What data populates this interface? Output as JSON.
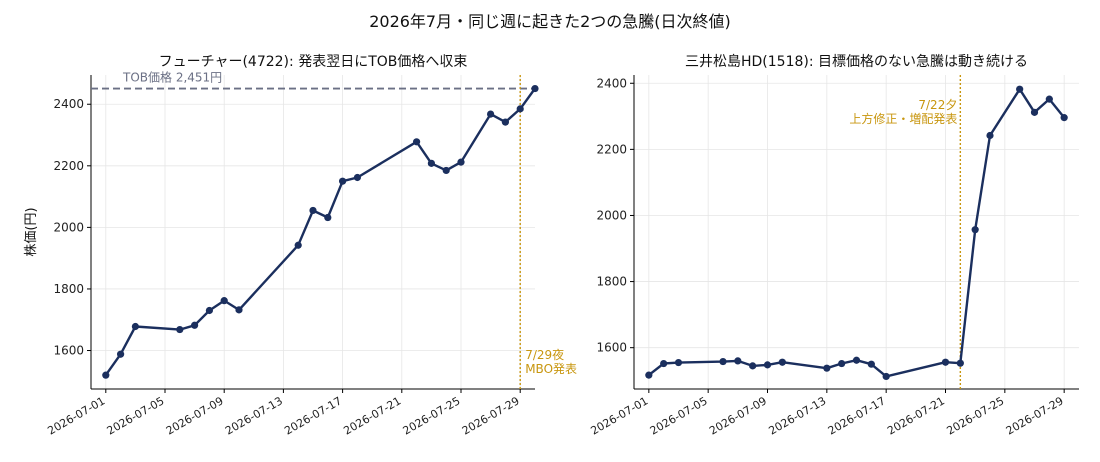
{
  "figure_title": "2026年7月・同じ週に起きた2つの急騰(日次終値)",
  "colors": {
    "line": "#1b2f5e",
    "ref": "#6b7085",
    "event": "#c8960f",
    "grid": "#e6e6e6",
    "axis": "#000000"
  },
  "chart_data": [
    {
      "type": "line",
      "title": "フューチャー(4722): 発表翌日にTOB価格へ収束",
      "ylabel": "株価(円)",
      "xlabel": "",
      "ylim": [
        1475,
        2495
      ],
      "xlim": [
        "2026-06-30",
        "2026-07-30"
      ],
      "yticks": [
        1600,
        1800,
        2000,
        2200,
        2400
      ],
      "xticks": [
        "2026-07-01",
        "2026-07-05",
        "2026-07-09",
        "2026-07-13",
        "2026-07-17",
        "2026-07-21",
        "2026-07-25",
        "2026-07-29"
      ],
      "grid": true,
      "series": [
        {
          "x": [
            "2026-07-01",
            "2026-07-02",
            "2026-07-03",
            "2026-07-06",
            "2026-07-07",
            "2026-07-08",
            "2026-07-09",
            "2026-07-10",
            "2026-07-14",
            "2026-07-15",
            "2026-07-16",
            "2026-07-17",
            "2026-07-18",
            "2026-07-22",
            "2026-07-23",
            "2026-07-24",
            "2026-07-25",
            "2026-07-27",
            "2026-07-28",
            "2026-07-29",
            "2026-07-30"
          ],
          "y": [
            1520,
            1588,
            1678,
            1668,
            1682,
            1730,
            1762,
            1732,
            1942,
            2055,
            2032,
            2150,
            2162,
            2278,
            2208,
            2185,
            2212,
            2368,
            2342,
            2385,
            2451
          ]
        }
      ],
      "hline": {
        "y": 2451,
        "label": "TOB価格 2,451円"
      },
      "vline": {
        "x": "2026-07-29",
        "label_lines": [
          "7/29夜",
          "MBO発表"
        ]
      }
    },
    {
      "type": "line",
      "title": "三井松島HD(1518): 目標価格のない急騰は動き続ける",
      "ylabel": "",
      "xlabel": "",
      "ylim": [
        1475,
        2425
      ],
      "xlim": [
        "2026-06-30",
        "2026-07-30"
      ],
      "yticks": [
        1600,
        1800,
        2000,
        2200,
        2400
      ],
      "xticks": [
        "2026-07-01",
        "2026-07-05",
        "2026-07-09",
        "2026-07-13",
        "2026-07-17",
        "2026-07-21",
        "2026-07-25",
        "2026-07-29"
      ],
      "grid": true,
      "series": [
        {
          "x": [
            "2026-07-01",
            "2026-07-02",
            "2026-07-03",
            "2026-07-06",
            "2026-07-07",
            "2026-07-08",
            "2026-07-09",
            "2026-07-10",
            "2026-07-13",
            "2026-07-14",
            "2026-07-15",
            "2026-07-16",
            "2026-07-17",
            "2026-07-21",
            "2026-07-22",
            "2026-07-23",
            "2026-07-24",
            "2026-07-26",
            "2026-07-27",
            "2026-07-28",
            "2026-07-29"
          ],
          "y": [
            1517,
            1552,
            1555,
            1558,
            1560,
            1545,
            1548,
            1556,
            1538,
            1552,
            1562,
            1550,
            1513,
            1556,
            1553,
            1957,
            2242,
            2382,
            2312,
            2352,
            2296
          ]
        }
      ],
      "vline": {
        "x": "2026-07-22",
        "label_lines": [
          "7/22夕",
          "上方修正・増配発表"
        ]
      }
    }
  ]
}
